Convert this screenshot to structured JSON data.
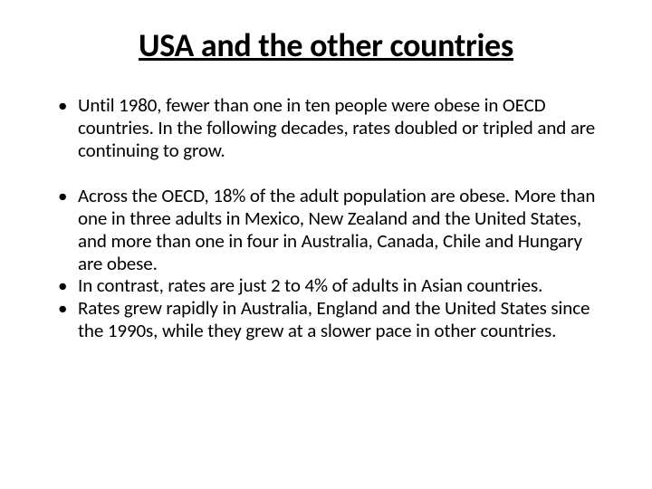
{
  "slide": {
    "title": "USA and the other countries",
    "bullets": [
      "Until 1980, fewer than one in ten people were obese in OECD countries. In the following decades, rates doubled or tripled and are continuing to grow.",
      " Across the OECD, 18% of the adult population are obese. More than one in three adults in Mexico, New Zealand and the United States, and more than one in four in Australia, Canada, Chile and Hungary are obese.",
      "In contrast, rates are just 2 to 4% of adults in Asian countries.",
      "Rates grew rapidly in Australia, England and the United States since the 1990s, while they grew at a slower pace in other countries."
    ],
    "gap_after_index": 0,
    "styling": {
      "background_color": "#ffffff",
      "text_color": "#000000",
      "title_fontsize": 36,
      "title_underline": true,
      "title_weight": 700,
      "body_fontsize": 21,
      "font_family": "Calibri",
      "slide_width": 720,
      "slide_height": 540
    }
  }
}
